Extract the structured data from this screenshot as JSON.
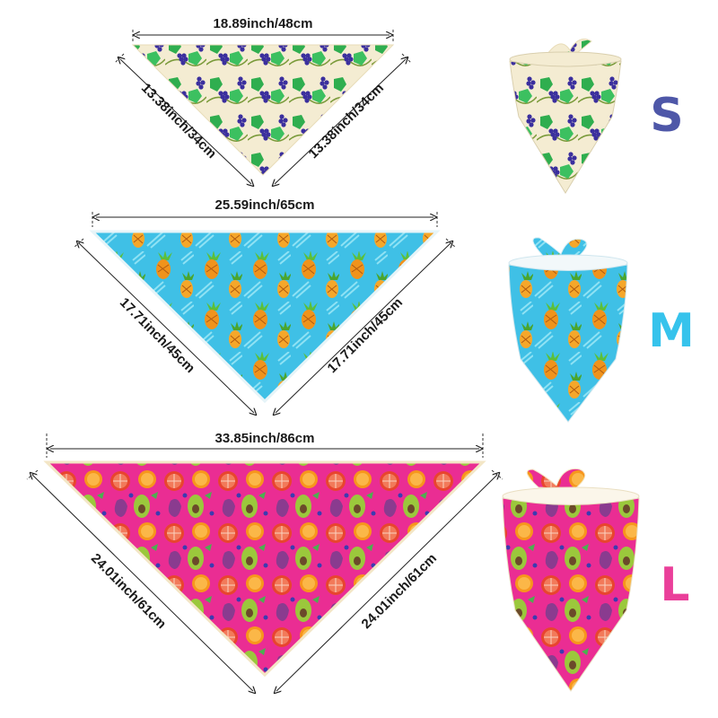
{
  "sizes": [
    {
      "letter": "S",
      "letter_color": "#4e57a8",
      "pattern": "grapes",
      "width_label": "18.89inch/48cm",
      "left_side_label": "13.38inch/34cm",
      "right_side_label": "13.38inch/34cm"
    },
    {
      "letter": "M",
      "letter_color": "#36c3ec",
      "pattern": "pineapples",
      "width_label": "25.59inch/65cm",
      "left_side_label": "17.71inch/45cm",
      "right_side_label": "17.71inch/45cm"
    },
    {
      "letter": "L",
      "letter_color": "#ea3f9a",
      "pattern": "mixed-fruit",
      "width_label": "33.85inch/86cm",
      "left_side_label": "24.01inch/61cm",
      "right_side_label": "24.01inch/61cm"
    }
  ],
  "colors": {
    "grape_bg": "#f4ecd2",
    "grape_leaf": "#2fae4f",
    "grape_fruit": "#3b2f9e",
    "pineapple_bg": "#3fc0e6",
    "pineapple_fruit": "#f0931c",
    "pineapple_leaf": "#5bbf3a",
    "fruit_bg": "#ea2d93",
    "orange": "#f7961c",
    "grapefruit": "#e8452e",
    "avocado": "#9bc83c",
    "fig": "#8a3b8f"
  }
}
